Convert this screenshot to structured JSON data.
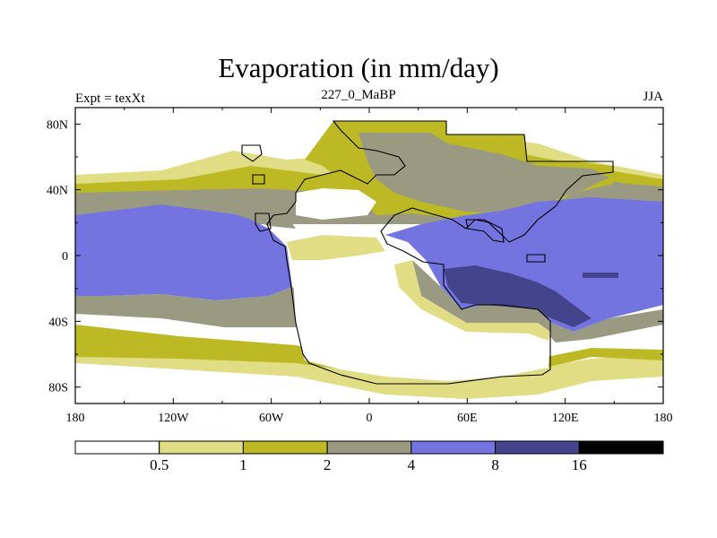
{
  "title": "Evaporation (in mm/day)",
  "left_label": "Expt = texXt",
  "center_label": "227_0_MaBP",
  "right_label": "JJA",
  "colors": {
    "lt_0_5": "#ffffff",
    "c0_5_1": "#e0dd85",
    "c1_2": "#bdb925",
    "c2_4": "#9a9a82",
    "c4_8": "#7474e0",
    "c8_16": "#44448c",
    "gt_16": "#000000"
  },
  "map": {
    "lon_range": [
      -180,
      180
    ],
    "lat_range": [
      -90,
      90
    ],
    "x_ticks": [
      {
        "value": -180,
        "label": "180"
      },
      {
        "value": -120,
        "label": "120W"
      },
      {
        "value": -60,
        "label": "60W"
      },
      {
        "value": 0,
        "label": "0"
      },
      {
        "value": 60,
        "label": "60E"
      },
      {
        "value": 120,
        "label": "120E"
      },
      {
        "value": 180,
        "label": "180"
      }
    ],
    "y_ticks": [
      {
        "value": 80,
        "label": "80N"
      },
      {
        "value": 40,
        "label": "40N"
      },
      {
        "value": 0,
        "label": "0"
      },
      {
        "value": -40,
        "label": "40S"
      },
      {
        "value": -80,
        "label": "80S"
      }
    ]
  },
  "colorbar": {
    "boxes": [
      "#ffffff",
      "#e0dd85",
      "#bdb925",
      "#9a9a82",
      "#7474e0",
      "#44448c",
      "#000000"
    ],
    "labels": [
      "0.5",
      "1",
      "2",
      "4",
      "8",
      "16"
    ]
  }
}
